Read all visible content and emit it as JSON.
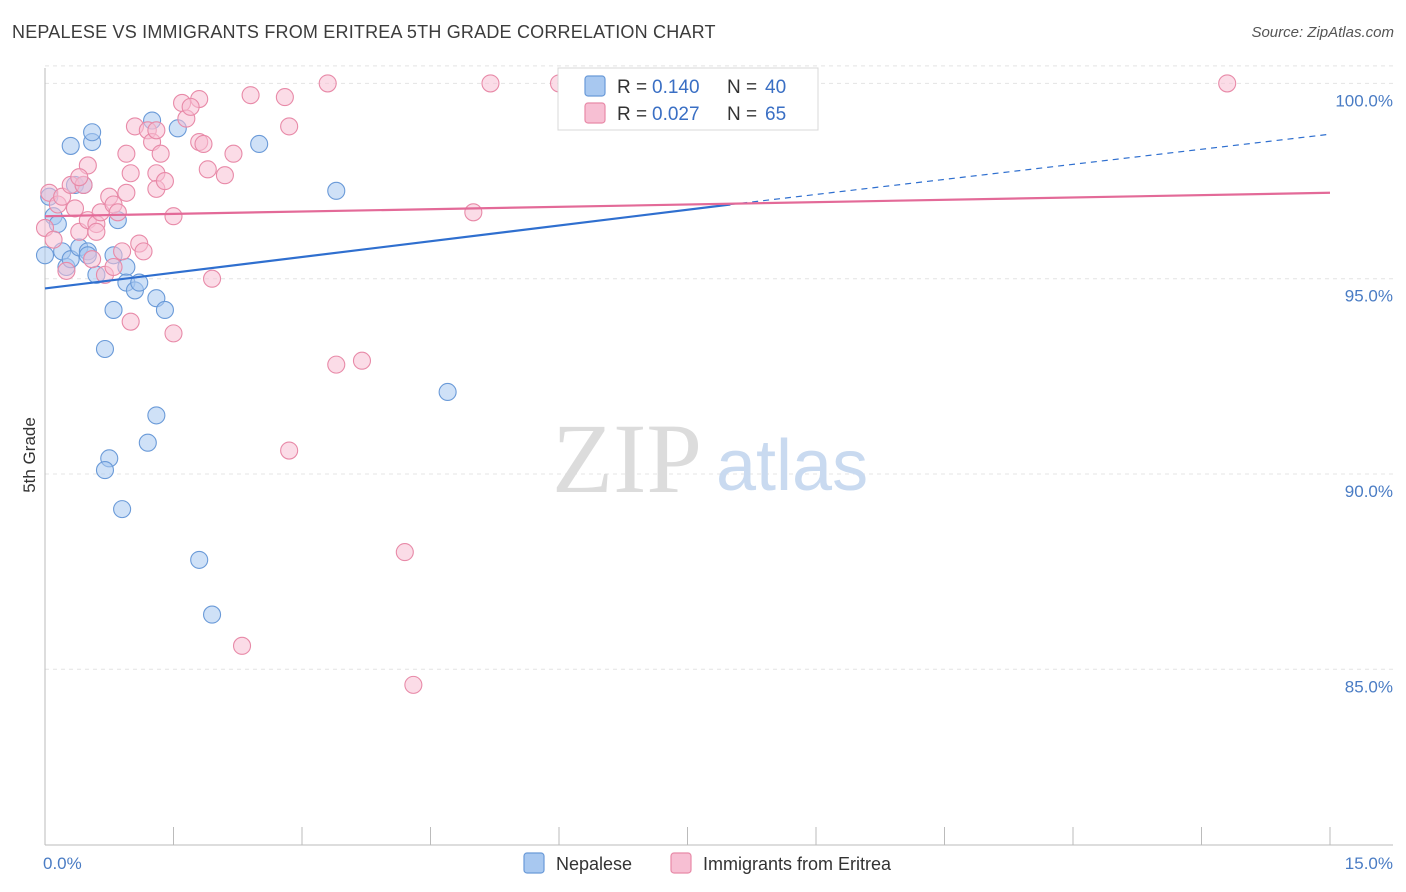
{
  "header": {
    "title": "NEPALESE VS IMMIGRANTS FROM ERITREA 5TH GRADE CORRELATION CHART",
    "source": "Source: ZipAtlas.com"
  },
  "watermark": {
    "zip": "ZIP",
    "atlas": "atlas"
  },
  "legend": {
    "r_label": "R =",
    "n_label": "N =",
    "rows": [
      {
        "r": "0.140",
        "n": "40",
        "color": "#a8c8f0",
        "stroke": "#6a9ad8"
      },
      {
        "r": "0.027",
        "n": "65",
        "color": "#f7bfd3",
        "stroke": "#e88aa8"
      }
    ]
  },
  "chart_data": {
    "type": "scatter",
    "title": "NEPALESE VS IMMIGRANTS FROM ERITREA 5TH GRADE CORRELATION CHART",
    "xlabel": "",
    "ylabel": "5th Grade",
    "xlim": [
      0,
      15
    ],
    "ylim": [
      80.5,
      100.6
    ],
    "x_tick_labels": [
      "0.0%",
      "15.0%"
    ],
    "y_ticks": [
      85,
      90,
      95,
      100
    ],
    "y_tick_labels": [
      "85.0%",
      "90.0%",
      "95.0%",
      "100.0%"
    ],
    "grid": true,
    "series": [
      {
        "name": "Nepalese",
        "color": "#a8c8f0",
        "stroke": "#6a9ad8",
        "line_color": "#2f6fcf",
        "trend": {
          "x0": 0,
          "y0": 94.75,
          "x1": 8.0,
          "y1": 96.9,
          "x_end": 15,
          "y_end": 98.7
        },
        "points": [
          [
            0.0,
            95.6
          ],
          [
            0.05,
            97.1
          ],
          [
            0.1,
            96.6
          ],
          [
            0.15,
            96.4
          ],
          [
            0.2,
            95.7
          ],
          [
            0.25,
            95.3
          ],
          [
            0.3,
            95.5
          ],
          [
            0.3,
            98.4
          ],
          [
            0.35,
            97.4
          ],
          [
            0.4,
            95.8
          ],
          [
            0.45,
            97.4
          ],
          [
            0.5,
            95.7
          ],
          [
            0.5,
            95.6
          ],
          [
            0.55,
            98.5
          ],
          [
            0.55,
            98.75
          ],
          [
            0.6,
            95.1
          ],
          [
            0.7,
            93.2
          ],
          [
            0.75,
            90.4
          ],
          [
            0.7,
            90.1
          ],
          [
            0.8,
            95.6
          ],
          [
            0.8,
            94.2
          ],
          [
            0.85,
            96.5
          ],
          [
            0.9,
            89.1
          ],
          [
            0.95,
            95.3
          ],
          [
            0.95,
            94.9
          ],
          [
            1.05,
            94.7
          ],
          [
            1.1,
            94.9
          ],
          [
            1.2,
            90.8
          ],
          [
            1.25,
            99.05
          ],
          [
            1.3,
            91.5
          ],
          [
            1.3,
            94.5
          ],
          [
            1.4,
            94.2
          ],
          [
            1.55,
            98.85
          ],
          [
            1.8,
            87.8
          ],
          [
            1.95,
            86.4
          ],
          [
            2.5,
            98.45
          ],
          [
            3.4,
            97.25
          ],
          [
            4.7,
            92.1
          ],
          [
            6.5,
            100.0
          ],
          [
            7.75,
            99.3
          ]
        ]
      },
      {
        "name": "Immigrants from Eritrea",
        "color": "#f7bfd3",
        "stroke": "#e88aa8",
        "line_color": "#e36a98",
        "trend": {
          "x0": 0,
          "y0": 96.6,
          "x1": 15,
          "y1": 97.2
        },
        "points": [
          [
            0.0,
            96.3
          ],
          [
            0.05,
            97.2
          ],
          [
            0.1,
            96.0
          ],
          [
            0.15,
            96.9
          ],
          [
            0.2,
            97.1
          ],
          [
            0.25,
            95.2
          ],
          [
            0.3,
            97.4
          ],
          [
            0.35,
            96.8
          ],
          [
            0.4,
            96.2
          ],
          [
            0.45,
            97.4
          ],
          [
            0.5,
            96.5
          ],
          [
            0.5,
            97.9
          ],
          [
            0.55,
            95.5
          ],
          [
            0.6,
            96.4
          ],
          [
            0.65,
            96.7
          ],
          [
            0.6,
            96.2
          ],
          [
            0.7,
            95.1
          ],
          [
            0.75,
            97.1
          ],
          [
            0.8,
            96.9
          ],
          [
            0.8,
            95.3
          ],
          [
            0.85,
            96.7
          ],
          [
            0.9,
            95.7
          ],
          [
            0.95,
            98.2
          ],
          [
            0.95,
            97.2
          ],
          [
            1.0,
            97.7
          ],
          [
            1.0,
            93.9
          ],
          [
            1.05,
            98.9
          ],
          [
            1.1,
            95.9
          ],
          [
            1.15,
            95.7
          ],
          [
            1.2,
            98.8
          ],
          [
            1.25,
            98.5
          ],
          [
            1.3,
            97.7
          ],
          [
            1.3,
            98.8
          ],
          [
            1.3,
            97.3
          ],
          [
            1.35,
            98.2
          ],
          [
            1.4,
            97.5
          ],
          [
            1.5,
            96.6
          ],
          [
            1.5,
            93.6
          ],
          [
            1.6,
            99.5
          ],
          [
            1.65,
            99.1
          ],
          [
            1.8,
            99.6
          ],
          [
            1.8,
            98.5
          ],
          [
            1.85,
            98.45
          ],
          [
            1.9,
            97.8
          ],
          [
            1.95,
            95.0
          ],
          [
            2.1,
            97.65
          ],
          [
            2.2,
            98.2
          ],
          [
            2.3,
            85.6
          ],
          [
            2.4,
            99.7
          ],
          [
            2.8,
            99.65
          ],
          [
            2.85,
            98.9
          ],
          [
            2.85,
            90.6
          ],
          [
            3.3,
            100.0
          ],
          [
            3.4,
            92.8
          ],
          [
            3.7,
            92.9
          ],
          [
            4.2,
            88.0
          ],
          [
            4.3,
            84.6
          ],
          [
            5.0,
            96.7
          ],
          [
            5.2,
            100.0
          ],
          [
            6.0,
            100.0
          ],
          [
            6.1,
            100.0
          ],
          [
            6.35,
            99.6
          ],
          [
            13.8,
            100.0
          ],
          [
            0.4,
            97.6
          ],
          [
            1.7,
            99.4
          ]
        ]
      }
    ]
  }
}
